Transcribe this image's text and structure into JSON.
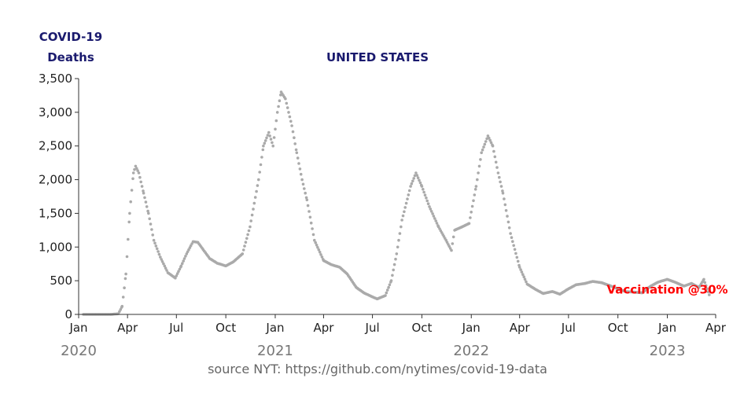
{
  "chart_data": {
    "type": "scatter",
    "title": "UNITED STATES",
    "ylabel_lines": [
      "COVID-19",
      "Deaths"
    ],
    "source": "source NYT: https://github.com/nytimes/covid-19-data",
    "annotation": {
      "text": "Vaccination @30%",
      "x": "2023-01-01",
      "y": 370,
      "color": "#ff0000"
    },
    "xlim": [
      "2020-01-01",
      "2023-04-01"
    ],
    "ylim": [
      0,
      3500
    ],
    "yticks": [
      0,
      500,
      1000,
      1500,
      2000,
      2500,
      3000,
      3500
    ],
    "ytick_labels": [
      "0",
      "500",
      "1,000",
      "1,500",
      "2,000",
      "2,500",
      "3,000",
      "3,500"
    ],
    "xticks": [
      {
        "date": "2020-01-01",
        "label": "Jan",
        "year": "2020"
      },
      {
        "date": "2020-04-01",
        "label": "Apr",
        "year": ""
      },
      {
        "date": "2020-07-01",
        "label": "Jul",
        "year": ""
      },
      {
        "date": "2020-10-01",
        "label": "Oct",
        "year": ""
      },
      {
        "date": "2021-01-01",
        "label": "Jan",
        "year": "2021"
      },
      {
        "date": "2021-04-01",
        "label": "Apr",
        "year": ""
      },
      {
        "date": "2021-07-01",
        "label": "Jul",
        "year": ""
      },
      {
        "date": "2021-10-01",
        "label": "Oct",
        "year": ""
      },
      {
        "date": "2022-01-01",
        "label": "Jan",
        "year": "2022"
      },
      {
        "date": "2022-04-01",
        "label": "Apr",
        "year": ""
      },
      {
        "date": "2022-07-01",
        "label": "Jul",
        "year": ""
      },
      {
        "date": "2022-10-01",
        "label": "Oct",
        "year": ""
      },
      {
        "date": "2023-01-01",
        "label": "Jan",
        "year": "2023"
      },
      {
        "date": "2023-04-01",
        "label": "Apr",
        "year": ""
      }
    ],
    "point_color": "#aaaaaa",
    "series": [
      {
        "points": [
          [
            "2020-01-10",
            0
          ],
          [
            "2020-02-01",
            0
          ],
          [
            "2020-03-01",
            0
          ],
          [
            "2020-03-15",
            10
          ],
          [
            "2020-03-22",
            120
          ],
          [
            "2020-03-29",
            600
          ],
          [
            "2020-04-05",
            1500
          ],
          [
            "2020-04-12",
            2100
          ],
          [
            "2020-04-16",
            2200
          ],
          [
            "2020-04-22",
            2100
          ],
          [
            "2020-05-01",
            1800
          ],
          [
            "2020-05-10",
            1500
          ],
          [
            "2020-05-20",
            1100
          ],
          [
            "2020-06-01",
            850
          ],
          [
            "2020-06-15",
            620
          ],
          [
            "2020-06-29",
            540
          ],
          [
            "2020-07-10",
            720
          ],
          [
            "2020-07-20",
            900
          ],
          [
            "2020-08-01",
            1080
          ],
          [
            "2020-08-10",
            1070
          ],
          [
            "2020-08-20",
            960
          ],
          [
            "2020-09-01",
            830
          ],
          [
            "2020-09-15",
            760
          ],
          [
            "2020-10-01",
            720
          ],
          [
            "2020-10-15",
            780
          ],
          [
            "2020-11-01",
            900
          ],
          [
            "2020-11-15",
            1300
          ],
          [
            "2020-12-01",
            2000
          ],
          [
            "2020-12-10",
            2500
          ],
          [
            "2020-12-20",
            2700
          ],
          [
            "2020-12-28",
            2500
          ],
          [
            "2021-01-05",
            3000
          ],
          [
            "2021-01-12",
            3300
          ],
          [
            "2021-01-20",
            3200
          ],
          [
            "2021-02-01",
            2800
          ],
          [
            "2021-02-10",
            2400
          ],
          [
            "2021-02-20",
            2000
          ],
          [
            "2021-03-01",
            1700
          ],
          [
            "2021-03-15",
            1100
          ],
          [
            "2021-04-01",
            800
          ],
          [
            "2021-04-15",
            740
          ],
          [
            "2021-05-01",
            700
          ],
          [
            "2021-05-15",
            600
          ],
          [
            "2021-06-01",
            400
          ],
          [
            "2021-06-15",
            320
          ],
          [
            "2021-07-01",
            260
          ],
          [
            "2021-07-10",
            230
          ],
          [
            "2021-07-25",
            280
          ],
          [
            "2021-08-05",
            500
          ],
          [
            "2021-08-15",
            900
          ],
          [
            "2021-08-25",
            1400
          ],
          [
            "2021-09-10",
            1900
          ],
          [
            "2021-09-20",
            2100
          ],
          [
            "2021-10-01",
            1900
          ],
          [
            "2021-10-15",
            1600
          ],
          [
            "2021-11-01",
            1300
          ],
          [
            "2021-11-15",
            1100
          ],
          [
            "2021-11-25",
            950
          ],
          [
            "2021-12-01",
            1250
          ],
          [
            "2021-12-15",
            1300
          ],
          [
            "2021-12-28",
            1350
          ],
          [
            "2022-01-10",
            1900
          ],
          [
            "2022-01-20",
            2400
          ],
          [
            "2022-02-01",
            2650
          ],
          [
            "2022-02-10",
            2500
          ],
          [
            "2022-02-20",
            2100
          ],
          [
            "2022-03-01",
            1800
          ],
          [
            "2022-03-15",
            1200
          ],
          [
            "2022-04-01",
            700
          ],
          [
            "2022-04-15",
            450
          ],
          [
            "2022-05-01",
            370
          ],
          [
            "2022-05-15",
            310
          ],
          [
            "2022-06-01",
            340
          ],
          [
            "2022-06-15",
            300
          ],
          [
            "2022-07-01",
            380
          ],
          [
            "2022-07-15",
            440
          ],
          [
            "2022-08-01",
            460
          ],
          [
            "2022-08-15",
            490
          ],
          [
            "2022-09-01",
            470
          ],
          [
            "2022-09-15",
            430
          ],
          [
            "2022-10-01",
            380
          ],
          [
            "2022-10-15",
            340
          ],
          [
            "2022-11-01",
            330
          ],
          [
            "2022-11-15",
            320
          ],
          [
            "2022-12-01",
            420
          ],
          [
            "2022-12-15",
            480
          ],
          [
            "2023-01-01",
            520
          ],
          [
            "2023-01-15",
            480
          ],
          [
            "2023-02-01",
            420
          ],
          [
            "2023-02-15",
            460
          ],
          [
            "2023-03-01",
            400
          ],
          [
            "2023-03-10",
            520
          ],
          [
            "2023-03-20",
            290
          ]
        ]
      }
    ]
  }
}
